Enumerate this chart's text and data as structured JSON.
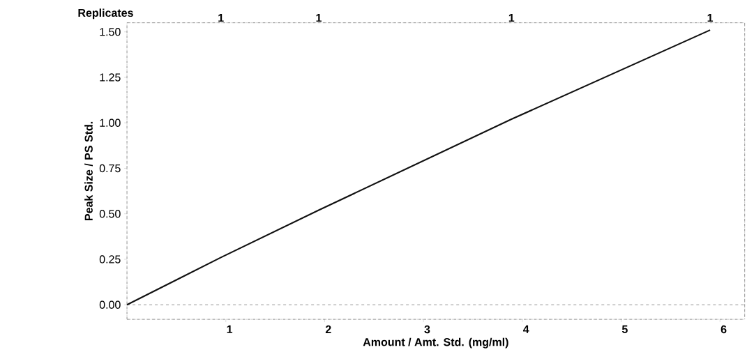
{
  "chart_data": {
    "type": "line",
    "xlabel": "Amount / Amt. Std. (mg/ml)",
    "ylabel": "Peak Size / PS Std.",
    "x2label": "Replicates",
    "xlim": [
      0,
      6.25
    ],
    "ylim": [
      -0.08,
      1.55
    ],
    "xticks": [
      1,
      2,
      3,
      4,
      5,
      6
    ],
    "yticks": [
      {
        "value": 0,
        "label": "0.00"
      },
      {
        "value": 0.25,
        "label": "0.25"
      },
      {
        "value": 0.5,
        "label": "0.50"
      },
      {
        "value": 0.75,
        "label": "0.75"
      },
      {
        "value": 1,
        "label": "1.00"
      },
      {
        "value": 1.25,
        "label": "1.25"
      },
      {
        "value": 1.5,
        "label": "1.50"
      }
    ],
    "annotations": [
      "1",
      "1",
      "1",
      "1"
    ],
    "x": [
      0,
      0.95,
      1.94,
      3.89,
      5.9
    ],
    "series": [
      {
        "color": "#111111",
        "values": [
          0,
          0.26,
          0.52,
          1.02,
          1.51
        ]
      }
    ],
    "ref_lines": [
      {
        "axis": "y",
        "value": 0,
        "line_style": "dashed",
        "color": "#333333"
      }
    ],
    "marker": "none",
    "line_style": "solid",
    "grid": false
  }
}
